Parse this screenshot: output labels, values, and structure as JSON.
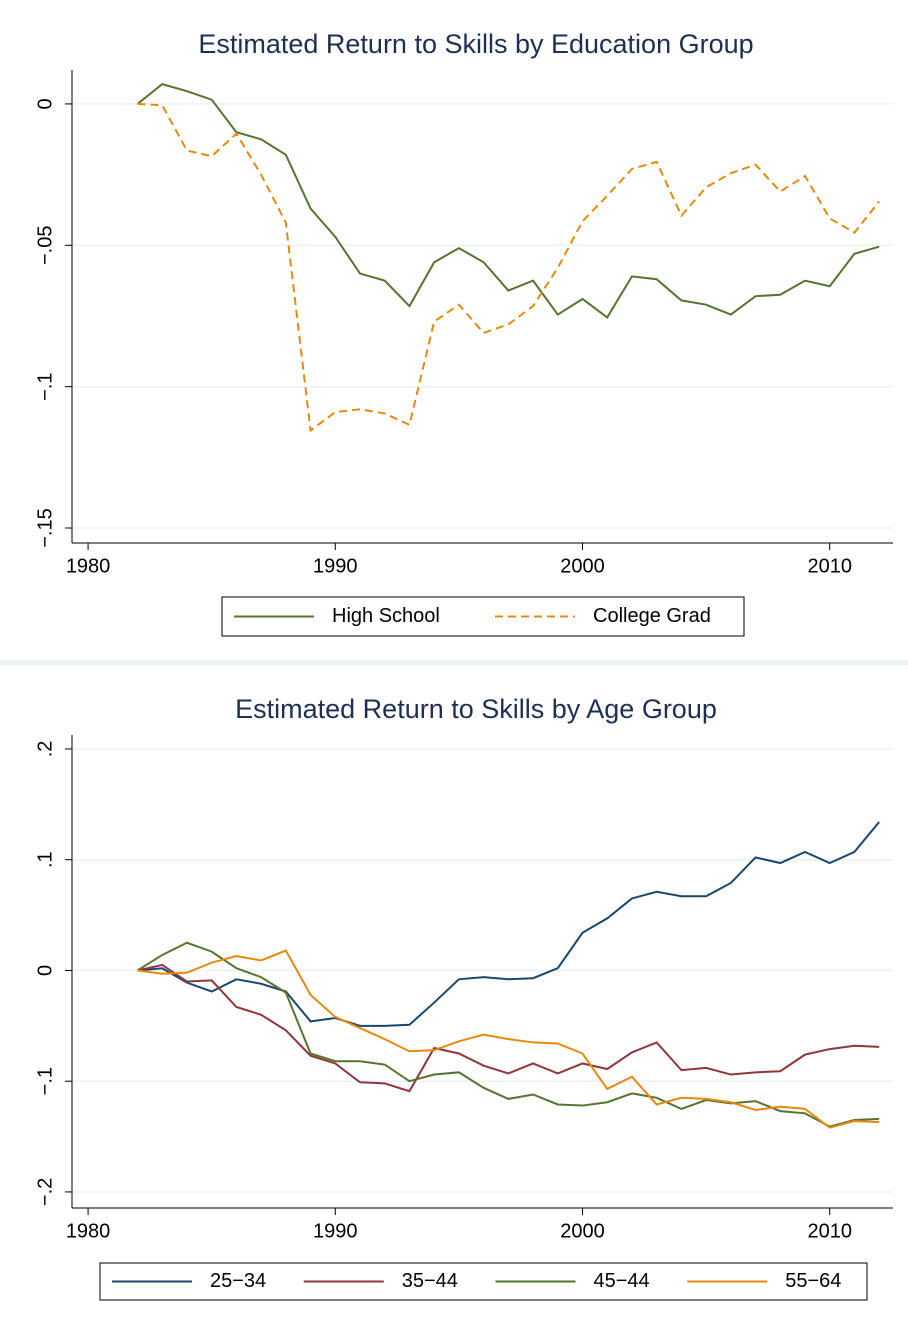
{
  "chart_data": [
    {
      "type": "line",
      "title": "Estimated Return to Skills by Education Group",
      "x": [
        1982,
        1983,
        1984,
        1985,
        1986,
        1987,
        1988,
        1989,
        1990,
        1991,
        1992,
        1993,
        1994,
        1995,
        1996,
        1997,
        1998,
        1999,
        2000,
        2001,
        2002,
        2003,
        2004,
        2005,
        2006,
        2007,
        2008,
        2009,
        2010,
        2011,
        2012
      ],
      "xlim": [
        1979.35,
        2012.56
      ],
      "xticks": [
        1980,
        1990,
        2000,
        2010
      ],
      "ylim": [
        -0.1553,
        0.012
      ],
      "yticks": [
        0,
        {
          "value": -0.05,
          "label": "−.05"
        },
        {
          "value": -0.1,
          "label": "−.1"
        },
        {
          "value": -0.15,
          "label": "−.15"
        }
      ],
      "grid": true,
      "legend": "bottom",
      "series": [
        {
          "name": "High School",
          "color": "#55752f",
          "dash": "solid",
          "values": [
            0,
            0.007,
            0.0045,
            0.0015,
            -0.01,
            -0.0125,
            -0.018,
            -0.037,
            -0.047,
            -0.06,
            -0.0625,
            -0.0715,
            -0.056,
            -0.051,
            -0.056,
            -0.066,
            -0.0625,
            -0.0745,
            -0.069,
            -0.0755,
            -0.061,
            -0.062,
            -0.0695,
            -0.071,
            -0.0745,
            -0.068,
            -0.0675,
            -0.0625,
            -0.0645,
            -0.053,
            -0.0505
          ]
        },
        {
          "name": "College Grad",
          "color": "#e8890c",
          "dash": "dashed",
          "values": [
            0,
            -0.0005,
            -0.0165,
            -0.0185,
            -0.0105,
            -0.025,
            -0.042,
            -0.1155,
            -0.109,
            -0.108,
            -0.1095,
            -0.1135,
            -0.077,
            -0.071,
            -0.081,
            -0.078,
            -0.0715,
            -0.058,
            -0.0415,
            -0.0325,
            -0.023,
            -0.0205,
            -0.0395,
            -0.0295,
            -0.0245,
            -0.0215,
            -0.031,
            -0.0255,
            -0.0405,
            -0.0455,
            -0.0345
          ]
        }
      ]
    },
    {
      "type": "line",
      "title": "Estimated Return to Skills by Age Group",
      "x": [
        1982,
        1983,
        1984,
        1985,
        1986,
        1987,
        1988,
        1989,
        1990,
        1991,
        1992,
        1993,
        1994,
        1995,
        1996,
        1997,
        1998,
        1999,
        2000,
        2001,
        2002,
        2003,
        2004,
        2005,
        2006,
        2007,
        2008,
        2009,
        2010,
        2011,
        2012
      ],
      "xlim": [
        1979.35,
        2012.56
      ],
      "xticks": [
        1980,
        1990,
        2000,
        2010
      ],
      "ylim": [
        -0.2145,
        0.2126
      ],
      "yticks": [
        {
          "value": 0.2,
          "label": ".2"
        },
        {
          "value": 0.1,
          "label": ".1"
        },
        0,
        {
          "value": -0.1,
          "label": "−.1"
        },
        {
          "value": -0.2,
          "label": "−.2"
        }
      ],
      "grid": true,
      "legend": "bottom",
      "series": [
        {
          "name": "25−34",
          "color": "#1a476f",
          "dash": "solid",
          "values": [
            0,
            0.002,
            -0.011,
            -0.019,
            -0.008,
            -0.012,
            -0.019,
            -0.046,
            -0.043,
            -0.05,
            -0.05,
            -0.049,
            -0.029,
            -0.008,
            -0.006,
            -0.008,
            -0.007,
            0.002,
            0.034,
            0.047,
            0.065,
            0.071,
            0.067,
            0.067,
            0.079,
            0.102,
            0.097,
            0.107,
            0.097,
            0.107,
            0.134
          ]
        },
        {
          "name": "35−44",
          "color": "#90353b",
          "dash": "solid",
          "values": [
            0,
            0.005,
            -0.01,
            -0.009,
            -0.033,
            -0.04,
            -0.054,
            -0.077,
            -0.084,
            -0.101,
            -0.102,
            -0.109,
            -0.07,
            -0.075,
            -0.086,
            -0.093,
            -0.084,
            -0.093,
            -0.084,
            -0.089,
            -0.074,
            -0.065,
            -0.09,
            -0.088,
            -0.094,
            -0.092,
            -0.091,
            -0.076,
            -0.071,
            -0.068,
            -0.069
          ]
        },
        {
          "name": "45−44",
          "color": "#55752f",
          "dash": "solid",
          "values": [
            0,
            0.014,
            0.025,
            0.017,
            0.002,
            -0.006,
            -0.02,
            -0.075,
            -0.082,
            -0.082,
            -0.085,
            -0.1,
            -0.094,
            -0.092,
            -0.106,
            -0.116,
            -0.112,
            -0.121,
            -0.122,
            -0.119,
            -0.111,
            -0.115,
            -0.125,
            -0.117,
            -0.12,
            -0.118,
            -0.127,
            -0.129,
            -0.141,
            -0.135,
            -0.134
          ]
        },
        {
          "name": "55−64",
          "color": "#e8890c",
          "dash": "solid",
          "values": [
            0,
            -0.003,
            -0.002,
            0.007,
            0.013,
            0.009,
            0.018,
            -0.022,
            -0.042,
            -0.052,
            -0.062,
            -0.073,
            -0.072,
            -0.064,
            -0.058,
            -0.062,
            -0.065,
            -0.066,
            -0.075,
            -0.107,
            -0.096,
            -0.121,
            -0.115,
            -0.116,
            -0.119,
            -0.126,
            -0.123,
            -0.125,
            -0.142,
            -0.136,
            -0.137
          ]
        }
      ]
    }
  ]
}
